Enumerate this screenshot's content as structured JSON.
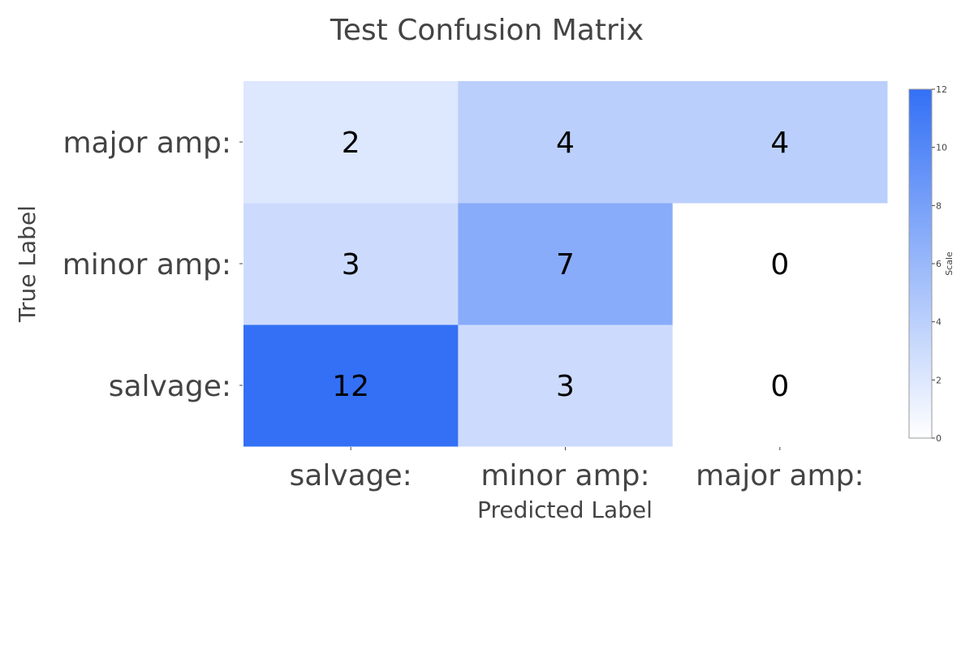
{
  "chart_data": {
    "type": "heatmap",
    "title": "Test Confusion Matrix",
    "xlabel": "Predicted Label",
    "ylabel": "True Label",
    "x_categories": [
      "salvage:",
      "minor amp:",
      "major amp:"
    ],
    "y_categories": [
      "salvage:",
      "minor amp:",
      "major amp:"
    ],
    "values": [
      [
        12,
        3,
        0
      ],
      [
        3,
        7,
        0
      ],
      [
        2,
        4,
        4
      ]
    ],
    "colorbar": {
      "title": "Scale",
      "range": [
        0,
        12
      ],
      "ticks": [
        "0",
        "2",
        "4",
        "6",
        "8",
        "10",
        "12"
      ],
      "color_low": "#ffffff",
      "color_high": "#3370f5"
    }
  }
}
